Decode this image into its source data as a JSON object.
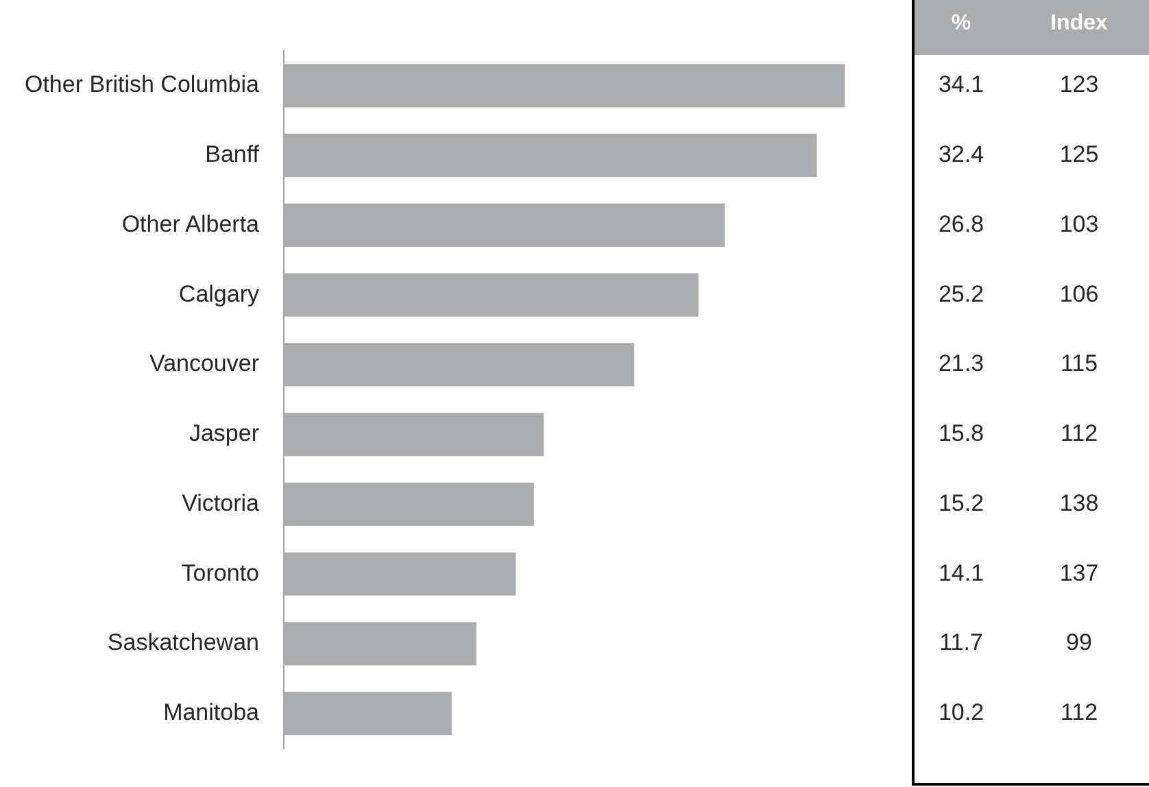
{
  "chart_data": {
    "type": "bar",
    "orientation": "horizontal",
    "categories": [
      "Other British Columbia",
      "Banff",
      "Other Alberta",
      "Calgary",
      "Vancouver",
      "Jasper",
      "Victoria",
      "Toronto",
      "Saskatchewan",
      "Manitoba"
    ],
    "series": [
      {
        "name": "%",
        "color": "#abacae",
        "values": [
          34.1,
          32.4,
          26.8,
          25.2,
          21.3,
          15.8,
          15.2,
          14.1,
          11.7,
          10.2
        ]
      }
    ],
    "annotations": [
      "Index",
      "123",
      "125",
      "103",
      "106",
      "115",
      "112",
      "138",
      "137",
      "99",
      "112"
    ],
    "data_labels": true,
    "legend": false
  }
}
